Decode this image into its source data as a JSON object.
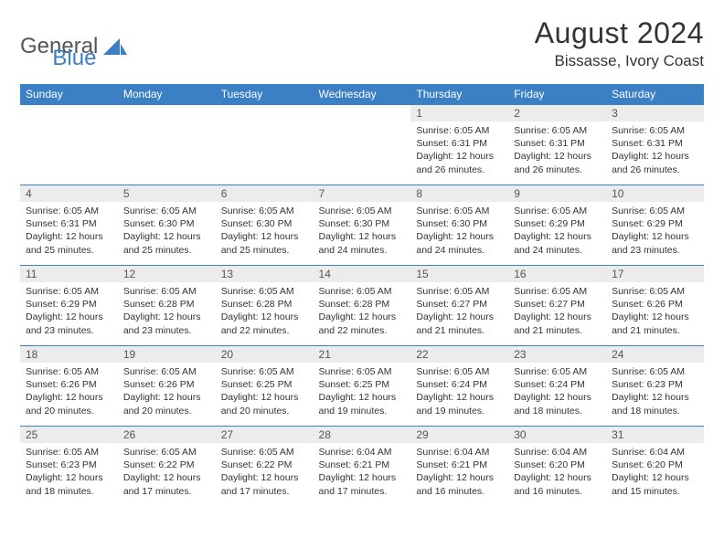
{
  "brand": {
    "part1": "General",
    "part2": "Blue",
    "accent_color": "#3b7fc4"
  },
  "title": "August 2024",
  "location": "Bissasse, Ivory Coast",
  "columns": [
    "Sunday",
    "Monday",
    "Tuesday",
    "Wednesday",
    "Thursday",
    "Friday",
    "Saturday"
  ],
  "colors": {
    "header_bg": "#3b7fc4",
    "header_text": "#ffffff",
    "daynum_bg": "#ececec",
    "rule": "#3b7fc4",
    "text": "#333333"
  },
  "weeks": [
    [
      null,
      null,
      null,
      null,
      {
        "n": "1",
        "sunrise": "6:05 AM",
        "sunset": "6:31 PM",
        "daylight": "12 hours and 26 minutes."
      },
      {
        "n": "2",
        "sunrise": "6:05 AM",
        "sunset": "6:31 PM",
        "daylight": "12 hours and 26 minutes."
      },
      {
        "n": "3",
        "sunrise": "6:05 AM",
        "sunset": "6:31 PM",
        "daylight": "12 hours and 26 minutes."
      }
    ],
    [
      {
        "n": "4",
        "sunrise": "6:05 AM",
        "sunset": "6:31 PM",
        "daylight": "12 hours and 25 minutes."
      },
      {
        "n": "5",
        "sunrise": "6:05 AM",
        "sunset": "6:30 PM",
        "daylight": "12 hours and 25 minutes."
      },
      {
        "n": "6",
        "sunrise": "6:05 AM",
        "sunset": "6:30 PM",
        "daylight": "12 hours and 25 minutes."
      },
      {
        "n": "7",
        "sunrise": "6:05 AM",
        "sunset": "6:30 PM",
        "daylight": "12 hours and 24 minutes."
      },
      {
        "n": "8",
        "sunrise": "6:05 AM",
        "sunset": "6:30 PM",
        "daylight": "12 hours and 24 minutes."
      },
      {
        "n": "9",
        "sunrise": "6:05 AM",
        "sunset": "6:29 PM",
        "daylight": "12 hours and 24 minutes."
      },
      {
        "n": "10",
        "sunrise": "6:05 AM",
        "sunset": "6:29 PM",
        "daylight": "12 hours and 23 minutes."
      }
    ],
    [
      {
        "n": "11",
        "sunrise": "6:05 AM",
        "sunset": "6:29 PM",
        "daylight": "12 hours and 23 minutes."
      },
      {
        "n": "12",
        "sunrise": "6:05 AM",
        "sunset": "6:28 PM",
        "daylight": "12 hours and 23 minutes."
      },
      {
        "n": "13",
        "sunrise": "6:05 AM",
        "sunset": "6:28 PM",
        "daylight": "12 hours and 22 minutes."
      },
      {
        "n": "14",
        "sunrise": "6:05 AM",
        "sunset": "6:28 PM",
        "daylight": "12 hours and 22 minutes."
      },
      {
        "n": "15",
        "sunrise": "6:05 AM",
        "sunset": "6:27 PM",
        "daylight": "12 hours and 21 minutes."
      },
      {
        "n": "16",
        "sunrise": "6:05 AM",
        "sunset": "6:27 PM",
        "daylight": "12 hours and 21 minutes."
      },
      {
        "n": "17",
        "sunrise": "6:05 AM",
        "sunset": "6:26 PM",
        "daylight": "12 hours and 21 minutes."
      }
    ],
    [
      {
        "n": "18",
        "sunrise": "6:05 AM",
        "sunset": "6:26 PM",
        "daylight": "12 hours and 20 minutes."
      },
      {
        "n": "19",
        "sunrise": "6:05 AM",
        "sunset": "6:26 PM",
        "daylight": "12 hours and 20 minutes."
      },
      {
        "n": "20",
        "sunrise": "6:05 AM",
        "sunset": "6:25 PM",
        "daylight": "12 hours and 20 minutes."
      },
      {
        "n": "21",
        "sunrise": "6:05 AM",
        "sunset": "6:25 PM",
        "daylight": "12 hours and 19 minutes."
      },
      {
        "n": "22",
        "sunrise": "6:05 AM",
        "sunset": "6:24 PM",
        "daylight": "12 hours and 19 minutes."
      },
      {
        "n": "23",
        "sunrise": "6:05 AM",
        "sunset": "6:24 PM",
        "daylight": "12 hours and 18 minutes."
      },
      {
        "n": "24",
        "sunrise": "6:05 AM",
        "sunset": "6:23 PM",
        "daylight": "12 hours and 18 minutes."
      }
    ],
    [
      {
        "n": "25",
        "sunrise": "6:05 AM",
        "sunset": "6:23 PM",
        "daylight": "12 hours and 18 minutes."
      },
      {
        "n": "26",
        "sunrise": "6:05 AM",
        "sunset": "6:22 PM",
        "daylight": "12 hours and 17 minutes."
      },
      {
        "n": "27",
        "sunrise": "6:05 AM",
        "sunset": "6:22 PM",
        "daylight": "12 hours and 17 minutes."
      },
      {
        "n": "28",
        "sunrise": "6:04 AM",
        "sunset": "6:21 PM",
        "daylight": "12 hours and 17 minutes."
      },
      {
        "n": "29",
        "sunrise": "6:04 AM",
        "sunset": "6:21 PM",
        "daylight": "12 hours and 16 minutes."
      },
      {
        "n": "30",
        "sunrise": "6:04 AM",
        "sunset": "6:20 PM",
        "daylight": "12 hours and 16 minutes."
      },
      {
        "n": "31",
        "sunrise": "6:04 AM",
        "sunset": "6:20 PM",
        "daylight": "12 hours and 15 minutes."
      }
    ]
  ],
  "labels": {
    "sunrise": "Sunrise:",
    "sunset": "Sunset:",
    "daylight": "Daylight:"
  }
}
